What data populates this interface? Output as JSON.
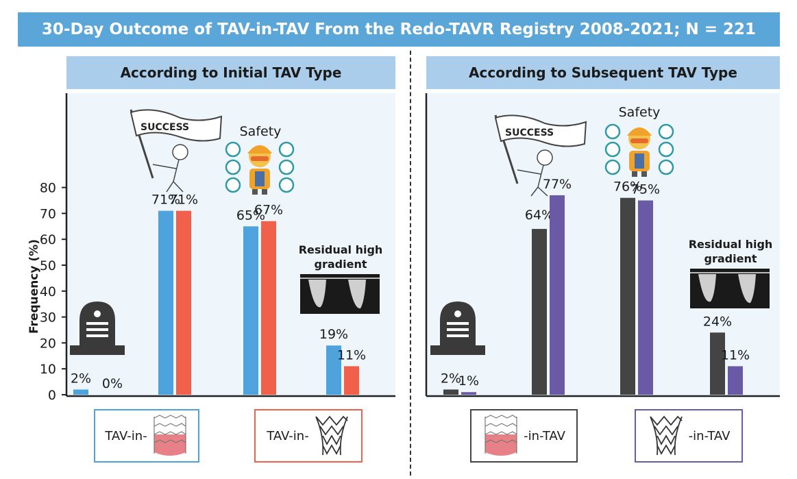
{
  "title": "30-Day Outcome of TAV-in-TAV From the Redo-TAVR Registry 2008-2021; N = 221",
  "left_panel": {
    "heading": "According to Initial TAV Type",
    "legend": [
      {
        "label": "TAV-in-",
        "color": "#4ea3dd",
        "icon": "balloon-expandable-valve-icon"
      },
      {
        "label": "TAV-in-",
        "color": "#f0604a",
        "icon": "self-expanding-valve-icon"
      }
    ]
  },
  "right_panel": {
    "heading": "According to Subsequent TAV Type",
    "legend": [
      {
        "label": "-in-TAV",
        "color": "#444444",
        "icon": "balloon-expandable-valve-icon"
      },
      {
        "label": "-in-TAV",
        "color": "#6a5aa6",
        "icon": "self-expanding-valve-icon"
      }
    ]
  },
  "icons": {
    "mortality": "tombstone-icon",
    "success": "success-flag-icon",
    "safety": "safety-worker-icon",
    "gradient": "doppler-gradient-icon"
  },
  "chart_data": [
    {
      "type": "bar",
      "title": "According to Initial TAV Type",
      "ylabel": "Frequency (%)",
      "ylim": [
        0,
        80
      ],
      "yticks": [
        0,
        10,
        20,
        30,
        40,
        50,
        60,
        70,
        80
      ],
      "groups": [
        {
          "annotation": "",
          "values": [
            2,
            0
          ],
          "labels": [
            "2%",
            "0%"
          ]
        },
        {
          "annotation": "SUCCESS",
          "values": [
            71,
            71
          ],
          "labels": [
            "71%",
            "71%"
          ]
        },
        {
          "annotation": "Safety",
          "values": [
            65,
            67
          ],
          "labels": [
            "65%",
            "67%"
          ]
        },
        {
          "annotation": "Residual high gradient",
          "values": [
            19,
            11
          ],
          "labels": [
            "19%",
            "11%"
          ]
        }
      ],
      "colors": [
        "#4ea3dd",
        "#f0604a"
      ]
    },
    {
      "type": "bar",
      "title": "According to Subsequent TAV Type",
      "ylim": [
        0,
        80
      ],
      "groups": [
        {
          "annotation": "",
          "values": [
            2,
            1
          ],
          "labels": [
            "2%",
            "1%"
          ]
        },
        {
          "annotation": "SUCCESS",
          "values": [
            64,
            77
          ],
          "labels": [
            "64%",
            "77%"
          ]
        },
        {
          "annotation": "Safety",
          "values": [
            76,
            75
          ],
          "labels": [
            "76%",
            "75%"
          ]
        },
        {
          "annotation": "Residual high gradient",
          "values": [
            24,
            11
          ],
          "labels": [
            "24%",
            "11%"
          ]
        }
      ],
      "colors": [
        "#444444",
        "#6a5aa6"
      ]
    }
  ]
}
